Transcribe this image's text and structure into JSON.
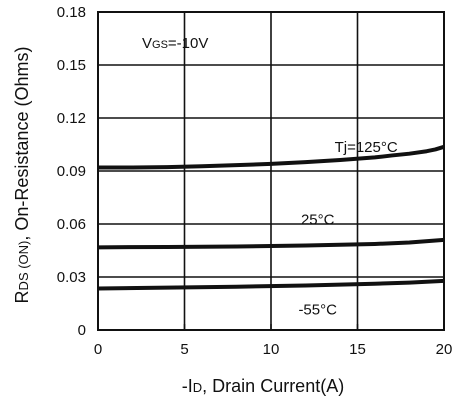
{
  "chart_data": {
    "type": "line",
    "xlabel": {
      "prefix": "-I",
      "sub": "D",
      "suffix": ", Drain Current(A)"
    },
    "ylabel": {
      "prefix": "R",
      "sub": "DS (ON)",
      "suffix": ", On-Resistance (Ohms)"
    },
    "xlim": [
      0,
      20
    ],
    "ylim": [
      0,
      0.18
    ],
    "x_ticks": [
      0,
      5,
      10,
      15,
      20
    ],
    "x_tick_labels": [
      "0",
      "5",
      "10",
      "15",
      "20"
    ],
    "y_ticks": [
      0,
      0.03,
      0.06,
      0.09,
      0.12,
      0.15,
      0.18
    ],
    "y_tick_labels": [
      "0",
      "0.03",
      "0.06",
      "0.09",
      "0.12",
      "0.15",
      "0.18"
    ],
    "grid": true,
    "condition": {
      "prefix": "V",
      "sub": "GS",
      "suffix": "=-10V"
    },
    "series": [
      {
        "name": "Tj=125°C",
        "x": [
          0,
          2,
          4,
          6,
          8,
          10,
          12,
          14,
          16,
          17,
          18,
          19,
          19.5,
          20
        ],
        "y": [
          0.092,
          0.092,
          0.0922,
          0.0927,
          0.0933,
          0.094,
          0.095,
          0.0962,
          0.0977,
          0.0988,
          0.0998,
          0.1012,
          0.1022,
          0.1037
        ]
      },
      {
        "name": "25°C",
        "x": [
          0,
          4,
          8,
          12,
          16,
          18,
          20
        ],
        "y": [
          0.0468,
          0.047,
          0.0473,
          0.0478,
          0.0487,
          0.0495,
          0.051
        ]
      },
      {
        "name": "-55°C",
        "x": [
          0,
          4,
          8,
          12,
          16,
          18,
          20
        ],
        "y": [
          0.0235,
          0.024,
          0.0245,
          0.0252,
          0.0262,
          0.0268,
          0.0278
        ]
      }
    ],
    "annotations": [
      {
        "text": "Tj=125°C",
        "x": 15.5,
        "y": 0.1035
      },
      {
        "text": "25°C",
        "x": 12.7,
        "y": 0.0625
      },
      {
        "text": "-55°C",
        "x": 12.7,
        "y": 0.0115
      }
    ],
    "colors": {
      "line": "#111111",
      "grid": "#111111",
      "background": "#ffffff"
    }
  }
}
